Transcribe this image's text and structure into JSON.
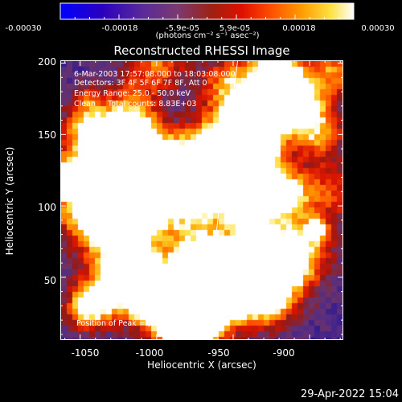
{
  "colorbar": {
    "ticks": [
      "-0.00030",
      "-0.00018",
      "-5.9e-05",
      "5.9e-05",
      "0.00018",
      "0.00030"
    ],
    "units": "(photons cm⁻² s⁻¹ asec⁻²)",
    "range": [
      -0.0003,
      0.0003
    ],
    "colors": [
      "#0000ff",
      "#5a2a9a",
      "#a02010",
      "#ff5000",
      "#ffe040",
      "#ffffff"
    ]
  },
  "annotations": {
    "line1": "6-Mar-2003 17:57:08.000 to 18:03:08.000",
    "line2": "Detectors: 3F 4F 5F 6F 7F 8F, Att 0",
    "line3": "Energy Range: 25.0 - 50.0 keV",
    "line4": "Clean     Total counts: 8.83E+03",
    "peak": "Position of Peak = [-974,25]"
  },
  "timestamp": "29-Apr-2022 15:04",
  "chart_data": {
    "type": "heatmap",
    "title": "Reconstructed RHESSI Image",
    "xlabel": "Heliocentric X (arcsec)",
    "ylabel": "Heliocentric Y (arcsec)",
    "x_ticks": [
      "-1050",
      "-1000",
      "-950",
      "-900"
    ],
    "y_ticks": [
      "50",
      "100",
      "150",
      "200"
    ],
    "xlim": [
      -1063,
      -878
    ],
    "ylim": [
      6,
      202
    ],
    "limb_curve": [
      [
        -967,
        6
      ],
      [
        -963,
        60
      ],
      [
        -958,
        110
      ],
      [
        -952,
        160
      ],
      [
        -947,
        202
      ]
    ],
    "peak_position": [
      -974,
      25
    ],
    "grid": false
  }
}
